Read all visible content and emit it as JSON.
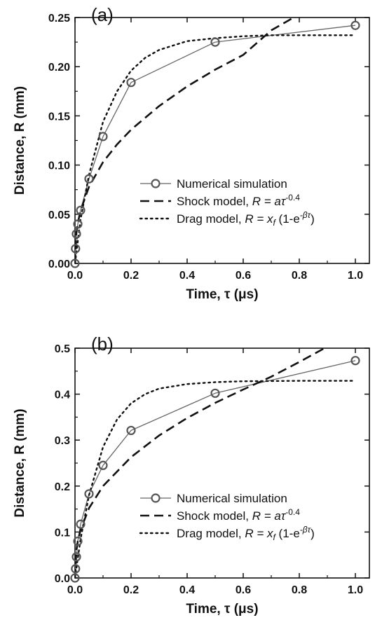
{
  "chart_data": [
    {
      "type": "line",
      "panel_label": "(a)",
      "xlabel": "Time, τ (μs)",
      "ylabel": "Distance, R (mm)",
      "xlim": [
        0,
        1.05
      ],
      "ylim": [
        0,
        0.25
      ],
      "xticks": [
        "0.0",
        "0.2",
        "0.4",
        "0.6",
        "0.8",
        "1.0"
      ],
      "yticks": [
        "0.00",
        "0.05",
        "0.10",
        "0.15",
        "0.20",
        "0.25"
      ],
      "legend_position": "center-right",
      "series": [
        {
          "name": "Numerical simulation",
          "style": "solid-circles",
          "x": [
            0.0,
            0.002,
            0.005,
            0.01,
            0.02,
            0.05,
            0.1,
            0.2,
            0.5,
            1.0
          ],
          "y": [
            0.0,
            0.015,
            0.03,
            0.04,
            0.054,
            0.086,
            0.129,
            0.184,
            0.225,
            0.242
          ]
        },
        {
          "name": "Shock model, R = aτ^-0.4",
          "label_main": "Shock model, ",
          "label_formula": "R = aτ",
          "label_sup": "-0.4",
          "style": "dashed",
          "x": [
            0.0,
            0.005,
            0.01,
            0.02,
            0.05,
            0.1,
            0.15,
            0.2,
            0.3,
            0.4,
            0.5,
            0.6,
            0.7,
            0.78
          ],
          "y": [
            0.0,
            0.031,
            0.041,
            0.054,
            0.078,
            0.103,
            0.121,
            0.136,
            0.16,
            0.18,
            0.197,
            0.212,
            0.237,
            0.25
          ]
        },
        {
          "name": "Drag model, R = x_f (1-e^-βτ)",
          "label_main": "Drag model, ",
          "label_formula": "R = x",
          "label_sub": "f",
          "label_mid": " (1-e",
          "label_sup": "-βτ",
          "label_end": ")",
          "style": "dotted",
          "x": [
            0.0,
            0.02,
            0.05,
            0.1,
            0.15,
            0.2,
            0.25,
            0.3,
            0.4,
            0.5,
            0.6,
            0.7,
            0.8,
            1.0
          ],
          "y": [
            0.0,
            0.045,
            0.09,
            0.144,
            0.175,
            0.196,
            0.209,
            0.217,
            0.226,
            0.229,
            0.231,
            0.232,
            0.232,
            0.232
          ]
        }
      ]
    },
    {
      "type": "line",
      "panel_label": "(b)",
      "xlabel": "Time, τ (μs)",
      "ylabel": "Distance, R (mm)",
      "xlim": [
        0,
        1.05
      ],
      "ylim": [
        0,
        0.5
      ],
      "xticks": [
        "0.0",
        "0.2",
        "0.4",
        "0.6",
        "0.8",
        "1.0"
      ],
      "yticks": [
        "0.0",
        "0.1",
        "0.2",
        "0.3",
        "0.4",
        "0.5"
      ],
      "legend_position": "center-right",
      "series": [
        {
          "name": "Numerical simulation",
          "style": "solid-circles",
          "x": [
            0.0,
            0.002,
            0.005,
            0.01,
            0.02,
            0.05,
            0.1,
            0.2,
            0.5,
            1.0
          ],
          "y": [
            0.0,
            0.02,
            0.046,
            0.08,
            0.117,
            0.183,
            0.245,
            0.321,
            0.402,
            0.473
          ]
        },
        {
          "name": "Shock model, R = aτ^-0.4",
          "label_main": "Shock model, ",
          "label_formula": "R = aτ",
          "label_sup": "-0.4",
          "style": "dashed",
          "x": [
            0.0,
            0.005,
            0.01,
            0.02,
            0.05,
            0.1,
            0.2,
            0.3,
            0.4,
            0.5,
            0.6,
            0.7,
            0.8,
            0.89
          ],
          "y": [
            0.0,
            0.06,
            0.08,
            0.105,
            0.152,
            0.2,
            0.263,
            0.31,
            0.348,
            0.381,
            0.41,
            0.438,
            0.47,
            0.5
          ]
        },
        {
          "name": "Drag model, R = x_f (1-e^-βτ)",
          "label_main": "Drag model, ",
          "label_formula": "R = x",
          "label_sub": "f",
          "label_mid": " (1-e",
          "label_sup": "-βτ",
          "label_end": ")",
          "style": "dotted",
          "x": [
            0.0,
            0.02,
            0.05,
            0.1,
            0.15,
            0.2,
            0.25,
            0.3,
            0.4,
            0.5,
            0.6,
            0.8,
            1.0
          ],
          "y": [
            0.0,
            0.085,
            0.18,
            0.285,
            0.345,
            0.38,
            0.4,
            0.412,
            0.422,
            0.426,
            0.428,
            0.429,
            0.429
          ]
        }
      ]
    }
  ]
}
